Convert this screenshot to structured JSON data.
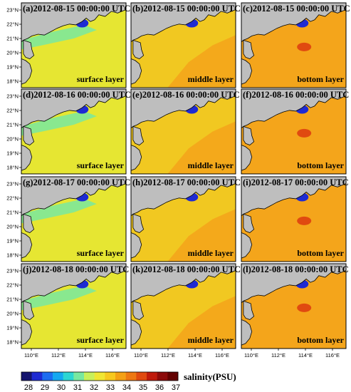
{
  "panels": [
    {
      "title": "(a)2012-08-15 00:00:00 UTC",
      "layer": "surface layer",
      "field": "fresh"
    },
    {
      "title": "(b)2012-08-15 00:00:00 UTC",
      "layer": "middle layer",
      "field": "mid"
    },
    {
      "title": "(c)2012-08-15 00:00:00 UTC",
      "layer": "bottom layer",
      "field": "salty"
    },
    {
      "title": "(d)2012-08-16 00:00:00 UTC",
      "layer": "surface layer",
      "field": "fresh"
    },
    {
      "title": "(e)2012-08-16 00:00:00 UTC",
      "layer": "middle layer",
      "field": "mid"
    },
    {
      "title": "(f)2012-08-16 00:00:00 UTC",
      "layer": "bottom layer",
      "field": "salty"
    },
    {
      "title": "(g)2012-08-17 00:00:00 UTC",
      "layer": "surface layer",
      "field": "fresh"
    },
    {
      "title": "(h)2012-08-17 00:00:00 UTC",
      "layer": "middle layer",
      "field": "mid"
    },
    {
      "title": "(i)2012-08-17 00:00:00 UTC",
      "layer": "bottom layer",
      "field": "salty"
    },
    {
      "title": "(j)2012-08-18 00:00:00 UTC",
      "layer": "surface layer",
      "field": "fresh"
    },
    {
      "title": "(k)2012-08-18 00:00:00 UTC",
      "layer": "middle layer",
      "field": "mid"
    },
    {
      "title": "(l)2012-08-18 00:00:00 UTC",
      "layer": "bottom layer",
      "field": "salty"
    }
  ],
  "lat_ticks": [
    "23°N",
    "22°N",
    "21°N",
    "20°N",
    "19°N",
    "18°N"
  ],
  "lon_ticks": [
    "110°E",
    "112°E",
    "114°E",
    "116°E"
  ],
  "colorbar": {
    "title": "salinity(PSU)",
    "labels": [
      "28",
      "29",
      "30",
      "31",
      "32",
      "33",
      "34",
      "35",
      "36",
      "37"
    ],
    "colors": [
      "#14146e",
      "#1e2ad2",
      "#1c6cf0",
      "#15a8f0",
      "#2dd6d2",
      "#78e8a0",
      "#c8f05a",
      "#f0e632",
      "#f7c81e",
      "#f4a014",
      "#ee7812",
      "#e04a10",
      "#bf1a0c",
      "#8c0a0a",
      "#620000"
    ]
  },
  "colors": {
    "land": "#bebebe",
    "fresh_base": "#e6e632",
    "mid_base": "#f1c821",
    "salty_base": "#f4a51b",
    "coastal_fresh": "#78e8a0",
    "estuary_low": "#1e2ad2"
  }
}
